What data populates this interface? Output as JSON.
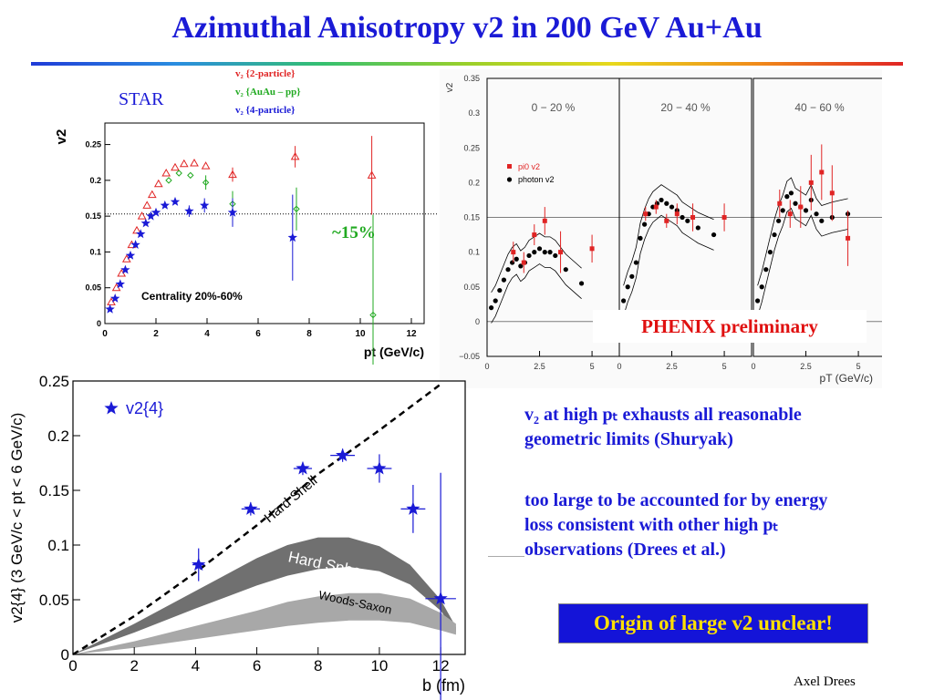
{
  "slide": {
    "title": "Azimuthal Anisotropy v2 in 200 GeV Au+Au",
    "star_label": "STAR",
    "legend_2p": "v₂ {2-particle}",
    "legend_auau": "v₂ {AuAu – pp}",
    "legend_4p": "v₂ {4-particle}",
    "fifteen_label": "~15%",
    "phenix_banner": "PHENIX preliminary",
    "text1_line1": "v₂ at high pₜ exhausts all reasonable",
    "text1_line2": "geometric limits (Shuryak)",
    "text2_line1": "too large to be accounted for by energy",
    "text2_line2": "loss consistent with other high pₜ",
    "text2_line3": "observations (Drees et al.)",
    "conclusion": "Origin of large v2 unclear!",
    "author": "Axel Drees",
    "colors": {
      "title": "#1a1ad6",
      "star_blue": "#1a1ad6",
      "red": "#e02424",
      "green": "#22aa22",
      "yellow": "#ffe000"
    }
  },
  "chart_data": [
    {
      "id": "star",
      "type": "scatter",
      "ylabel": "v2",
      "xlabel": "pt (GeV/c)",
      "annotation": "Centrality 20%-60%",
      "xlim": [
        0,
        12.5
      ],
      "ylim": [
        0,
        0.28
      ],
      "xticks": [
        "0",
        "2",
        "4",
        "6",
        "8",
        "10",
        "12"
      ],
      "yticks": [
        "0",
        "0.05",
        "0.1",
        "0.15",
        "0.2",
        "0.25"
      ],
      "dotted_line_y": 0.153,
      "series": [
        {
          "name": "v2 {2-particle}",
          "color": "#e02424",
          "marker": "triangle",
          "x": [
            0.25,
            0.45,
            0.65,
            0.85,
            1.05,
            1.25,
            1.45,
            1.65,
            1.85,
            2.1,
            2.4,
            2.75,
            3.1,
            3.5,
            3.95,
            5.0,
            7.45,
            10.45
          ],
          "y": [
            0.03,
            0.05,
            0.07,
            0.09,
            0.11,
            0.13,
            0.15,
            0.165,
            0.18,
            0.195,
            0.21,
            0.218,
            0.223,
            0.224,
            0.22,
            0.208,
            0.233,
            0.207
          ],
          "err": [
            0,
            0,
            0,
            0,
            0,
            0,
            0,
            0,
            0,
            0,
            0,
            0,
            0,
            0,
            0,
            0.01,
            0.015,
            0.055
          ]
        },
        {
          "name": "v2 {AuAu - pp}",
          "color": "#22aa22",
          "marker": "diamond",
          "x": [
            2.5,
            2.9,
            3.35,
            3.95,
            5.0,
            7.5,
            10.5
          ],
          "y": [
            0.2,
            0.21,
            0.207,
            0.197,
            0.167,
            0.16,
            0.012
          ],
          "err": [
            0,
            0,
            0,
            0.01,
            0.018,
            0.03,
            0.14
          ]
        },
        {
          "name": "v2 {4-particle}",
          "color": "#1a1ad6",
          "marker": "star",
          "x": [
            0.2,
            0.4,
            0.6,
            0.8,
            1.0,
            1.2,
            1.4,
            1.6,
            1.8,
            2.0,
            2.35,
            2.75,
            3.3,
            3.9,
            5.0,
            7.35
          ],
          "y": [
            0.02,
            0.035,
            0.055,
            0.075,
            0.095,
            0.11,
            0.125,
            0.14,
            0.15,
            0.155,
            0.165,
            0.17,
            0.157,
            0.165,
            0.155,
            0.12
          ],
          "err": [
            0,
            0,
            0,
            0,
            0,
            0,
            0,
            0,
            0,
            0,
            0,
            0,
            0.008,
            0.01,
            0.02,
            0.06
          ]
        }
      ]
    },
    {
      "id": "phenix",
      "type": "scatter",
      "ylabel": "v2",
      "xlabel": "pT (GeV/c)",
      "ylim": [
        -0.05,
        0.35
      ],
      "yticks": [
        "−0.05",
        "0",
        "0.05",
        "0.1",
        "0.15",
        "0.2",
        "0.25",
        "0.3",
        "0.35"
      ],
      "xticks": [
        "0",
        "2.5",
        "5"
      ],
      "dotted_line_y": 0.15,
      "legend": [
        "pi0 v2",
        "photon v2"
      ],
      "panels": [
        {
          "label": "0 − 20 %",
          "pi0": {
            "x": [
              1.25,
              1.75,
              2.25,
              2.75,
              3.5,
              5.0
            ],
            "y": [
              0.1,
              0.085,
              0.125,
              0.145,
              0.1,
              0.105
            ],
            "err": [
              0.015,
              0.015,
              0.015,
              0.02,
              0.03,
              0.02
            ]
          },
          "photon": {
            "x": [
              0.2,
              0.4,
              0.6,
              0.8,
              1.0,
              1.2,
              1.4,
              1.6,
              1.8,
              2.0,
              2.25,
              2.5,
              2.75,
              3.0,
              3.25,
              3.75,
              4.5
            ],
            "y": [
              0.02,
              0.03,
              0.045,
              0.06,
              0.075,
              0.085,
              0.09,
              0.08,
              0.085,
              0.095,
              0.1,
              0.105,
              0.1,
              0.1,
              0.095,
              0.075,
              0.055
            ]
          }
        },
        {
          "label": "20 − 40 %",
          "pi0": {
            "x": [
              1.25,
              1.75,
              2.25,
              2.75,
              3.5,
              5.0
            ],
            "y": [
              0.155,
              0.165,
              0.145,
              0.155,
              0.15,
              0.15
            ],
            "err": [
              0.01,
              0.01,
              0.01,
              0.015,
              0.02,
              0.02
            ]
          },
          "photon": {
            "x": [
              0.2,
              0.4,
              0.6,
              0.8,
              1.0,
              1.2,
              1.4,
              1.6,
              1.8,
              2.0,
              2.25,
              2.5,
              2.75,
              3.0,
              3.25,
              3.75,
              4.5
            ],
            "y": [
              0.03,
              0.05,
              0.065,
              0.085,
              0.12,
              0.14,
              0.155,
              0.165,
              0.17,
              0.175,
              0.17,
              0.165,
              0.16,
              0.15,
              0.145,
              0.135,
              0.125
            ]
          }
        },
        {
          "label": "40 − 60 %",
          "pi0": {
            "x": [
              1.25,
              1.75,
              2.25,
              2.75,
              3.25,
              3.75,
              4.5
            ],
            "y": [
              0.17,
              0.155,
              0.165,
              0.2,
              0.215,
              0.185,
              0.12
            ],
            "err": [
              0.02,
              0.02,
              0.03,
              0.04,
              0.04,
              0.04,
              0.04
            ]
          },
          "photon": {
            "x": [
              0.2,
              0.4,
              0.6,
              0.8,
              1.0,
              1.2,
              1.4,
              1.6,
              1.8,
              2.0,
              2.25,
              2.5,
              2.75,
              3.0,
              3.25,
              3.75,
              4.5
            ],
            "y": [
              0.03,
              0.05,
              0.075,
              0.1,
              0.125,
              0.145,
              0.16,
              0.18,
              0.185,
              0.17,
              0.165,
              0.16,
              0.175,
              0.155,
              0.145,
              0.15,
              0.155
            ]
          }
        }
      ]
    },
    {
      "id": "v2b",
      "type": "scatter",
      "ylabel": "v2{4} (3 GeV/c < pt < 6 GeV/c)",
      "xlabel": "b (fm)",
      "xlim": [
        0,
        12.8
      ],
      "ylim": [
        0,
        0.25
      ],
      "xticks": [
        "0",
        "2",
        "4",
        "6",
        "8",
        "10",
        "12"
      ],
      "yticks": [
        "0",
        "0.05",
        "0.1",
        "0.15",
        "0.2",
        "0.25"
      ],
      "legend": [
        "v2{4}"
      ],
      "curve_labels": [
        "Hard Shell",
        "Hard Sphere",
        "Woods-Saxon"
      ],
      "points": {
        "x": [
          4.1,
          5.8,
          7.5,
          8.8,
          10.0,
          11.1,
          12.0
        ],
        "y": [
          0.082,
          0.133,
          0.17,
          0.182,
          0.17,
          0.133,
          0.051
        ],
        "xerr": [
          0.2,
          0.3,
          0.3,
          0.4,
          0.4,
          0.4,
          0.5
        ],
        "yerr": [
          0.015,
          0.006,
          0.006,
          0.006,
          0.013,
          0.022,
          0.115
        ]
      },
      "hard_shell": {
        "x": [
          0,
          2,
          4,
          6,
          8,
          10,
          12
        ],
        "y": [
          0,
          0.035,
          0.075,
          0.118,
          0.165,
          0.205,
          0.247
        ]
      },
      "hard_sphere_upper": {
        "x": [
          0,
          2,
          4,
          6,
          7,
          8,
          9,
          10,
          11,
          12,
          12.5
        ],
        "y": [
          0,
          0.028,
          0.058,
          0.088,
          0.1,
          0.107,
          0.107,
          0.099,
          0.082,
          0.05,
          0.025
        ]
      },
      "hard_sphere_lower": {
        "x": [
          0,
          2,
          4,
          6,
          7,
          8,
          9,
          10,
          11,
          12,
          12.5
        ],
        "y": [
          0,
          0.02,
          0.042,
          0.063,
          0.072,
          0.078,
          0.08,
          0.076,
          0.064,
          0.04,
          0.02
        ]
      },
      "woods_upper": {
        "x": [
          0,
          2,
          4,
          6,
          7,
          8,
          9,
          10,
          11,
          12,
          12.5
        ],
        "y": [
          0,
          0.012,
          0.026,
          0.04,
          0.048,
          0.053,
          0.056,
          0.056,
          0.051,
          0.038,
          0.028
        ]
      },
      "woods_lower": {
        "x": [
          0,
          2,
          4,
          6,
          7,
          8,
          9,
          10,
          11,
          12,
          12.5
        ],
        "y": [
          0,
          0.006,
          0.014,
          0.022,
          0.026,
          0.029,
          0.031,
          0.031,
          0.029,
          0.022,
          0.018
        ]
      }
    }
  ]
}
